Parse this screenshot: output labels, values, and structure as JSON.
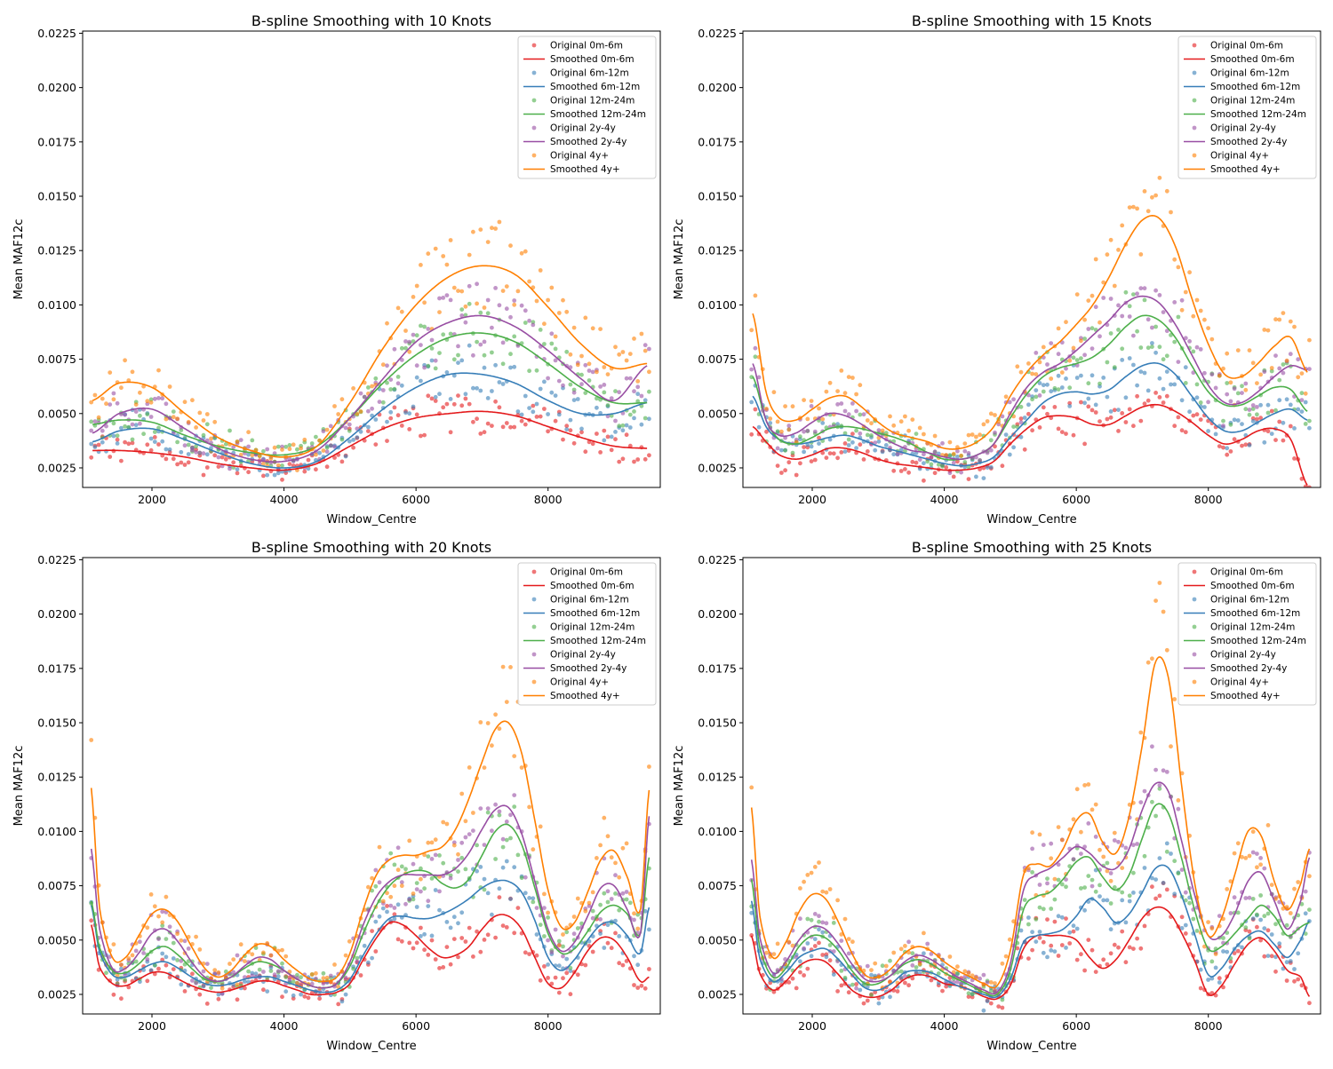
{
  "figure": {
    "xlabel": "Window_Centre",
    "ylabel": "Mean MAF12c",
    "xlim": [
      950,
      9700
    ],
    "ylim": [
      0.0016,
      0.0226
    ],
    "xticks": [
      2000,
      4000,
      6000,
      8000
    ],
    "xtick_labels": [
      "2000",
      "4000",
      "6000",
      "8000"
    ],
    "yticks": [
      0.0025,
      0.005,
      0.0075,
      0.01,
      0.0125,
      0.015,
      0.0175,
      0.02,
      0.0225
    ],
    "ytick_labels": [
      "0.0025",
      "0.0050",
      "0.0075",
      "0.0100",
      "0.0125",
      "0.0150",
      "0.0175",
      "0.0200",
      "0.0225"
    ],
    "legend_position": "upper right",
    "grid": false
  },
  "series_meta": [
    {
      "name": "0m-6m",
      "original_label": "Original 0m-6m",
      "smoothed_label": "Smoothed 0m-6m",
      "color": "#e41a1c"
    },
    {
      "name": "6m-12m",
      "original_label": "Original 6m-12m",
      "smoothed_label": "Smoothed 6m-12m",
      "color": "#377eb8"
    },
    {
      "name": "12m-24m",
      "original_label": "Original 12m-24m",
      "smoothed_label": "Smoothed 12m-24m",
      "color": "#4daf4a"
    },
    {
      "name": "2y-4y",
      "original_label": "Original 2y-4y",
      "smoothed_label": "Smoothed 2y-4y",
      "color": "#984ea3"
    },
    {
      "name": "4y+",
      "original_label": "Original 4y+",
      "smoothed_label": "Smoothed 4y+",
      "color": "#ff7f00"
    }
  ],
  "chart_data": [
    {
      "type": "scatter",
      "title": "B-spline Smoothing with 10 Knots",
      "knots": 10,
      "x": [
        1100,
        1500,
        2000,
        2500,
        3000,
        3500,
        4000,
        4500,
        5000,
        5500,
        6000,
        6500,
        7000,
        7500,
        8000,
        8500,
        9000,
        9500
      ],
      "smoothed": [
        {
          "name": "Smoothed 0m-6m",
          "values": [
            0.0033,
            0.0033,
            0.0032,
            0.003,
            0.0027,
            0.0025,
            0.0024,
            0.0027,
            0.0035,
            0.0043,
            0.0048,
            0.005,
            0.0051,
            0.0049,
            0.0044,
            0.0039,
            0.0035,
            0.0034
          ]
        },
        {
          "name": "Smoothed 6m-12m",
          "values": [
            0.0037,
            0.0042,
            0.0043,
            0.0038,
            0.0032,
            0.0027,
            0.0025,
            0.0028,
            0.0039,
            0.0052,
            0.0062,
            0.0068,
            0.0068,
            0.0064,
            0.0056,
            0.005,
            0.005,
            0.0055
          ]
        },
        {
          "name": "Smoothed 12m-24m",
          "values": [
            0.0045,
            0.0047,
            0.0046,
            0.004,
            0.0035,
            0.0032,
            0.0031,
            0.0035,
            0.0048,
            0.0064,
            0.0077,
            0.0085,
            0.0087,
            0.0083,
            0.0073,
            0.0062,
            0.0055,
            0.0055
          ]
        },
        {
          "name": "Smoothed 2y-4y",
          "values": [
            0.0041,
            0.005,
            0.0052,
            0.0043,
            0.0034,
            0.0029,
            0.0028,
            0.0033,
            0.0048,
            0.0066,
            0.0083,
            0.0092,
            0.0095,
            0.009,
            0.0079,
            0.0066,
            0.0056,
            0.0072
          ]
        },
        {
          "name": "Smoothed 4y+",
          "values": [
            0.0056,
            0.0064,
            0.0062,
            0.005,
            0.0039,
            0.0033,
            0.003,
            0.0035,
            0.0055,
            0.008,
            0.01,
            0.0113,
            0.0118,
            0.0114,
            0.0099,
            0.0082,
            0.0071,
            0.0073
          ]
        }
      ]
    },
    {
      "type": "scatter",
      "title": "B-spline Smoothing with 15 Knots",
      "knots": 15,
      "x": [
        1100,
        1300,
        1500,
        1750,
        2000,
        2250,
        2500,
        2750,
        3000,
        3250,
        3500,
        3750,
        4000,
        4250,
        4500,
        4750,
        5000,
        5250,
        5500,
        5750,
        6000,
        6250,
        6500,
        6750,
        7000,
        7250,
        7500,
        7750,
        8000,
        8250,
        8500,
        8750,
        9000,
        9250,
        9500
      ],
      "smoothed": [
        {
          "name": "Smoothed 0m-6m",
          "values": [
            0.0044,
            0.0037,
            0.0031,
            0.0029,
            0.0031,
            0.0034,
            0.0034,
            0.0032,
            0.0029,
            0.0027,
            0.0026,
            0.0025,
            0.0024,
            0.0024,
            0.0025,
            0.0028,
            0.0036,
            0.0043,
            0.0048,
            0.0049,
            0.0048,
            0.0045,
            0.0045,
            0.0049,
            0.0053,
            0.0054,
            0.0051,
            0.0046,
            0.004,
            0.0036,
            0.0038,
            0.0042,
            0.0043,
            0.0038,
            0.0017
          ]
        },
        {
          "name": "Smoothed 6m-12m",
          "values": [
            0.0058,
            0.0044,
            0.0038,
            0.0036,
            0.0037,
            0.0039,
            0.004,
            0.0038,
            0.0035,
            0.0033,
            0.0031,
            0.0029,
            0.0027,
            0.0026,
            0.0027,
            0.003,
            0.0039,
            0.0047,
            0.0055,
            0.0059,
            0.006,
            0.0059,
            0.0061,
            0.0067,
            0.0072,
            0.0073,
            0.0068,
            0.0058,
            0.0048,
            0.0042,
            0.0042,
            0.0046,
            0.005,
            0.0052,
            0.0047
          ]
        },
        {
          "name": "Smoothed 12m-24m",
          "values": [
            0.0067,
            0.0047,
            0.0038,
            0.0036,
            0.0039,
            0.0043,
            0.0044,
            0.0043,
            0.0041,
            0.0039,
            0.0036,
            0.0032,
            0.0029,
            0.0029,
            0.0031,
            0.0036,
            0.0048,
            0.0059,
            0.0067,
            0.0071,
            0.0073,
            0.0076,
            0.0082,
            0.009,
            0.0095,
            0.0093,
            0.0085,
            0.0072,
            0.006,
            0.0054,
            0.0054,
            0.0058,
            0.0062,
            0.0061,
            0.0051
          ]
        },
        {
          "name": "Smoothed 2y-4y",
          "values": [
            0.0073,
            0.0047,
            0.004,
            0.0041,
            0.0046,
            0.005,
            0.0049,
            0.0045,
            0.004,
            0.0036,
            0.0033,
            0.0032,
            0.003,
            0.0029,
            0.0031,
            0.0036,
            0.005,
            0.0062,
            0.0069,
            0.0073,
            0.0079,
            0.0086,
            0.0093,
            0.0101,
            0.0104,
            0.0101,
            0.0091,
            0.0077,
            0.0063,
            0.0055,
            0.0055,
            0.006,
            0.0067,
            0.0072,
            0.007
          ]
        },
        {
          "name": "Smoothed 4y+",
          "values": [
            0.0096,
            0.006,
            0.0048,
            0.0047,
            0.0052,
            0.0057,
            0.0058,
            0.0053,
            0.0046,
            0.0041,
            0.0039,
            0.0037,
            0.0034,
            0.0034,
            0.0037,
            0.0044,
            0.0058,
            0.0069,
            0.0077,
            0.0083,
            0.0091,
            0.01,
            0.0113,
            0.0128,
            0.0139,
            0.014,
            0.0127,
            0.0103,
            0.0082,
            0.0068,
            0.0067,
            0.0073,
            0.0081,
            0.0085,
            0.0069
          ]
        }
      ]
    },
    {
      "type": "scatter",
      "title": "B-spline Smoothing with 20 Knots",
      "knots": 20,
      "x": [
        1080,
        1200,
        1400,
        1600,
        1800,
        2000,
        2200,
        2400,
        2600,
        2800,
        3000,
        3200,
        3400,
        3600,
        3800,
        4000,
        4200,
        4400,
        4600,
        4800,
        5000,
        5200,
        5400,
        5600,
        5800,
        6000,
        6200,
        6400,
        6600,
        6800,
        7000,
        7200,
        7400,
        7600,
        7800,
        8000,
        8200,
        8400,
        8600,
        8800,
        9000,
        9200,
        9400,
        9530
      ],
      "smoothed": [
        {
          "name": "Smoothed 0m-6m",
          "values": [
            0.0057,
            0.0038,
            0.003,
            0.0029,
            0.0032,
            0.0035,
            0.0035,
            0.0032,
            0.0029,
            0.0027,
            0.0026,
            0.0027,
            0.0029,
            0.0031,
            0.0031,
            0.0029,
            0.0027,
            0.0025,
            0.0025,
            0.0026,
            0.003,
            0.0041,
            0.0051,
            0.0058,
            0.0057,
            0.0052,
            0.0046,
            0.0042,
            0.0043,
            0.0047,
            0.0055,
            0.0061,
            0.0061,
            0.0055,
            0.0042,
            0.003,
            0.0028,
            0.0035,
            0.0045,
            0.0051,
            0.005,
            0.0042,
            0.0031,
            0.0033
          ]
        },
        {
          "name": "Smoothed 6m-12m",
          "values": [
            0.0066,
            0.0045,
            0.0034,
            0.0033,
            0.0036,
            0.0039,
            0.004,
            0.0037,
            0.0033,
            0.003,
            0.0029,
            0.003,
            0.0032,
            0.0033,
            0.0033,
            0.0031,
            0.0029,
            0.0027,
            0.0026,
            0.0027,
            0.0032,
            0.0043,
            0.0053,
            0.006,
            0.0061,
            0.006,
            0.006,
            0.0062,
            0.0065,
            0.0069,
            0.0074,
            0.0077,
            0.0077,
            0.0072,
            0.0059,
            0.0042,
            0.0036,
            0.0041,
            0.005,
            0.0057,
            0.0058,
            0.0052,
            0.0044,
            0.0065
          ]
        },
        {
          "name": "Smoothed 12m-24m",
          "values": [
            0.0068,
            0.0047,
            0.0036,
            0.0035,
            0.0039,
            0.0045,
            0.0047,
            0.0043,
            0.0037,
            0.0032,
            0.0031,
            0.0033,
            0.0037,
            0.004,
            0.0039,
            0.0036,
            0.0032,
            0.0029,
            0.0028,
            0.003,
            0.0038,
            0.0053,
            0.0066,
            0.0075,
            0.008,
            0.0082,
            0.0081,
            0.0076,
            0.0074,
            0.0078,
            0.0089,
            0.01,
            0.0103,
            0.0094,
            0.0074,
            0.0053,
            0.0044,
            0.0046,
            0.0054,
            0.0063,
            0.0066,
            0.0062,
            0.0053,
            0.0088
          ]
        },
        {
          "name": "Smoothed 2y-4y",
          "values": [
            0.0092,
            0.0056,
            0.0037,
            0.0037,
            0.0044,
            0.0053,
            0.0055,
            0.0049,
            0.004,
            0.0033,
            0.0031,
            0.0033,
            0.0038,
            0.0042,
            0.0041,
            0.0036,
            0.0032,
            0.0029,
            0.0028,
            0.003,
            0.004,
            0.0057,
            0.007,
            0.0077,
            0.008,
            0.008,
            0.008,
            0.008,
            0.0083,
            0.009,
            0.0101,
            0.011,
            0.0111,
            0.0099,
            0.0077,
            0.0055,
            0.0045,
            0.0049,
            0.0061,
            0.0074,
            0.0075,
            0.0064,
            0.0053,
            0.0107
          ]
        },
        {
          "name": "Smoothed 4y+",
          "values": [
            0.012,
            0.0066,
            0.0042,
            0.0042,
            0.0052,
            0.0062,
            0.0064,
            0.0058,
            0.0047,
            0.0037,
            0.0033,
            0.0036,
            0.0043,
            0.0048,
            0.0047,
            0.0041,
            0.0036,
            0.0032,
            0.0031,
            0.0033,
            0.0044,
            0.0064,
            0.008,
            0.0087,
            0.0089,
            0.0089,
            0.0091,
            0.0093,
            0.0101,
            0.0115,
            0.0132,
            0.0147,
            0.015,
            0.0136,
            0.0105,
            0.0073,
            0.0056,
            0.0058,
            0.0072,
            0.0087,
            0.0091,
            0.0079,
            0.0064,
            0.0119
          ]
        }
      ]
    },
    {
      "type": "scatter",
      "title": "B-spline Smoothing with 25 Knots",
      "knots": 25,
      "x": [
        1080,
        1200,
        1400,
        1600,
        1800,
        2000,
        2200,
        2400,
        2600,
        2800,
        3000,
        3200,
        3400,
        3600,
        3800,
        4000,
        4200,
        4400,
        4600,
        4800,
        5000,
        5200,
        5400,
        5600,
        5800,
        6000,
        6200,
        6400,
        6600,
        6800,
        7000,
        7200,
        7400,
        7600,
        7800,
        8000,
        8200,
        8400,
        8600,
        8800,
        9000,
        9200,
        9400,
        9530
      ],
      "smoothed": [
        {
          "name": "Smoothed 0m-6m",
          "values": [
            0.0052,
            0.0035,
            0.0027,
            0.0031,
            0.0038,
            0.0041,
            0.004,
            0.0034,
            0.0027,
            0.0024,
            0.0024,
            0.0027,
            0.0032,
            0.0034,
            0.0033,
            0.003,
            0.0029,
            0.0027,
            0.0024,
            0.0023,
            0.0029,
            0.0046,
            0.0052,
            0.0052,
            0.0052,
            0.005,
            0.0042,
            0.0037,
            0.0041,
            0.005,
            0.006,
            0.0065,
            0.0063,
            0.0053,
            0.004,
            0.0025,
            0.0029,
            0.0039,
            0.0048,
            0.0051,
            0.0045,
            0.0036,
            0.0033,
            0.0024
          ]
        },
        {
          "name": "Smoothed 6m-12m",
          "values": [
            0.0068,
            0.0042,
            0.0031,
            0.0035,
            0.0042,
            0.0045,
            0.0046,
            0.0041,
            0.0034,
            0.0028,
            0.0027,
            0.003,
            0.0035,
            0.0036,
            0.0035,
            0.0032,
            0.0029,
            0.0027,
            0.0025,
            0.0024,
            0.0032,
            0.0049,
            0.0052,
            0.0053,
            0.0055,
            0.0061,
            0.0069,
            0.0065,
            0.0058,
            0.0062,
            0.0072,
            0.0083,
            0.0083,
            0.007,
            0.0052,
            0.0034,
            0.0037,
            0.0046,
            0.0052,
            0.0054,
            0.0048,
            0.0042,
            0.005,
            0.0059
          ]
        },
        {
          "name": "Smoothed 12m-24m",
          "values": [
            0.0078,
            0.0047,
            0.0033,
            0.0037,
            0.0047,
            0.0052,
            0.0051,
            0.0045,
            0.0036,
            0.003,
            0.003,
            0.0034,
            0.0039,
            0.0041,
            0.0039,
            0.0035,
            0.0032,
            0.0029,
            0.0026,
            0.0025,
            0.0036,
            0.0064,
            0.007,
            0.0072,
            0.0078,
            0.0086,
            0.0088,
            0.0079,
            0.0073,
            0.008,
            0.0097,
            0.0112,
            0.0108,
            0.0087,
            0.0063,
            0.0046,
            0.0047,
            0.0053,
            0.006,
            0.0066,
            0.0061,
            0.0052,
            0.0056,
            0.0058
          ]
        },
        {
          "name": "Smoothed 2y-4y",
          "values": [
            0.0087,
            0.0052,
            0.0035,
            0.004,
            0.005,
            0.0056,
            0.0055,
            0.0048,
            0.0039,
            0.0032,
            0.0031,
            0.0034,
            0.004,
            0.0043,
            0.0041,
            0.0037,
            0.0033,
            0.003,
            0.0027,
            0.0026,
            0.0039,
            0.0073,
            0.008,
            0.0083,
            0.0088,
            0.0093,
            0.009,
            0.0084,
            0.0083,
            0.0092,
            0.011,
            0.0122,
            0.0118,
            0.0095,
            0.007,
            0.0052,
            0.0052,
            0.0062,
            0.0077,
            0.0081,
            0.0068,
            0.0055,
            0.0068,
            0.0088
          ]
        },
        {
          "name": "Smoothed 4y+",
          "values": [
            0.0111,
            0.0062,
            0.0042,
            0.0049,
            0.0063,
            0.0071,
            0.0069,
            0.0058,
            0.0044,
            0.0034,
            0.0033,
            0.0037,
            0.0044,
            0.0047,
            0.0045,
            0.004,
            0.0036,
            0.0033,
            0.003,
            0.0029,
            0.0045,
            0.008,
            0.0085,
            0.0084,
            0.0092,
            0.0105,
            0.0108,
            0.0095,
            0.009,
            0.0107,
            0.014,
            0.0178,
            0.017,
            0.012,
            0.0075,
            0.0052,
            0.006,
            0.008,
            0.01,
            0.0098,
            0.0077,
            0.0064,
            0.0076,
            0.0092
          ]
        }
      ]
    }
  ]
}
